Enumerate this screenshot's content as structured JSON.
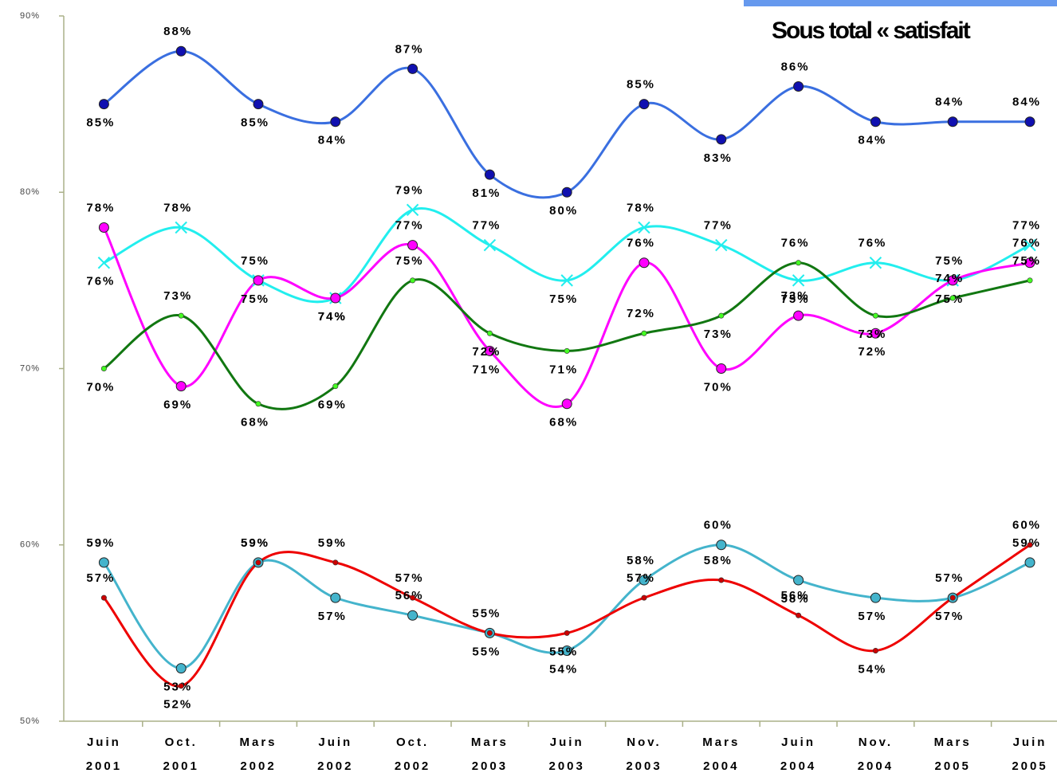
{
  "chart_data": {
    "type": "line",
    "title": "Sous total « satisfait",
    "categories": [
      "Juin 2001",
      "Oct. 2001",
      "Mars 2002",
      "Juin 2002",
      "Oct. 2002",
      "Mars 2003",
      "Juin 2003",
      "Nov. 2003",
      "Mars 2004",
      "Juin 2004",
      "Nov. 2004",
      "Mars 2005",
      "Juin 2005"
    ],
    "ylim": [
      50,
      90
    ],
    "yticks": [
      {
        "value": 50,
        "label": "50%"
      },
      {
        "value": 60,
        "label": "60%"
      },
      {
        "value": 70,
        "label": "70%"
      },
      {
        "value": 80,
        "label": "80%"
      },
      {
        "value": 90,
        "label": "90%"
      }
    ],
    "grid": false,
    "series": [
      {
        "color": "#3a6fe0",
        "marker": "circle",
        "marker_color": "#1010b0",
        "values": [
          85,
          88,
          85,
          84,
          87,
          81,
          80,
          85,
          83,
          86,
          84,
          84,
          84
        ],
        "value_labels": [
          "85%",
          "88%",
          "85%",
          "84%",
          "87%",
          "81%",
          "80%",
          "85%",
          "83%",
          "86%",
          "84%",
          "84%",
          "84%"
        ]
      },
      {
        "color": "#22eeee",
        "marker": "x",
        "marker_color": "#22eeee",
        "values": [
          76,
          78,
          75,
          74,
          79,
          77,
          75,
          78,
          77,
          75,
          76,
          75,
          77
        ],
        "value_labels": [
          "76%",
          "78%",
          "75%",
          "74%",
          "79%",
          "77%",
          "75%",
          "78%",
          "77%",
          "75%",
          "76%",
          "75%",
          "77%"
        ]
      },
      {
        "color": "#ff00ff",
        "marker": "circle",
        "marker_color": "#ff00ff",
        "values": [
          78,
          69,
          75,
          74,
          77,
          71,
          68,
          76,
          70,
          73,
          72,
          75,
          76
        ],
        "value_labels": [
          "78%",
          "69%",
          "75%",
          "74%",
          "77%",
          "71%",
          "68%",
          "76%",
          "70%",
          "73%",
          "72%",
          "75%",
          "76%"
        ]
      },
      {
        "color": "#117711",
        "marker": "dot",
        "marker_color": "#44ff22",
        "values": [
          70,
          73,
          68,
          69,
          75,
          72,
          71,
          72,
          73,
          76,
          73,
          74,
          75
        ],
        "value_labels": [
          "70%",
          "73%",
          "68%",
          "69%",
          "75%",
          "72%",
          "71%",
          "72%",
          "73%",
          "76%",
          "73%",
          "74%",
          "75%"
        ]
      },
      {
        "color": "#44b4cc",
        "marker": "circle",
        "marker_color": "#44b4cc",
        "values": [
          59,
          53,
          59,
          57,
          56,
          55,
          54,
          58,
          60,
          58,
          57,
          57,
          59
        ],
        "value_labels": [
          "59%",
          "53%",
          "59%",
          "57%",
          "56%",
          "55%",
          "54%",
          "58%",
          "60%",
          "58%",
          "57%",
          "57%",
          "59%"
        ]
      },
      {
        "color": "#ee0000",
        "marker": "dot",
        "marker_color": "#cc0000",
        "values": [
          57,
          52,
          59,
          59,
          57,
          55,
          55,
          57,
          58,
          56,
          54,
          57,
          60
        ],
        "value_labels": [
          "57%",
          "52%",
          "59%",
          "59%",
          "57%",
          "55%",
          "55%",
          "57%",
          "58%",
          "56%",
          "54%",
          "57%",
          "60%"
        ]
      }
    ]
  }
}
